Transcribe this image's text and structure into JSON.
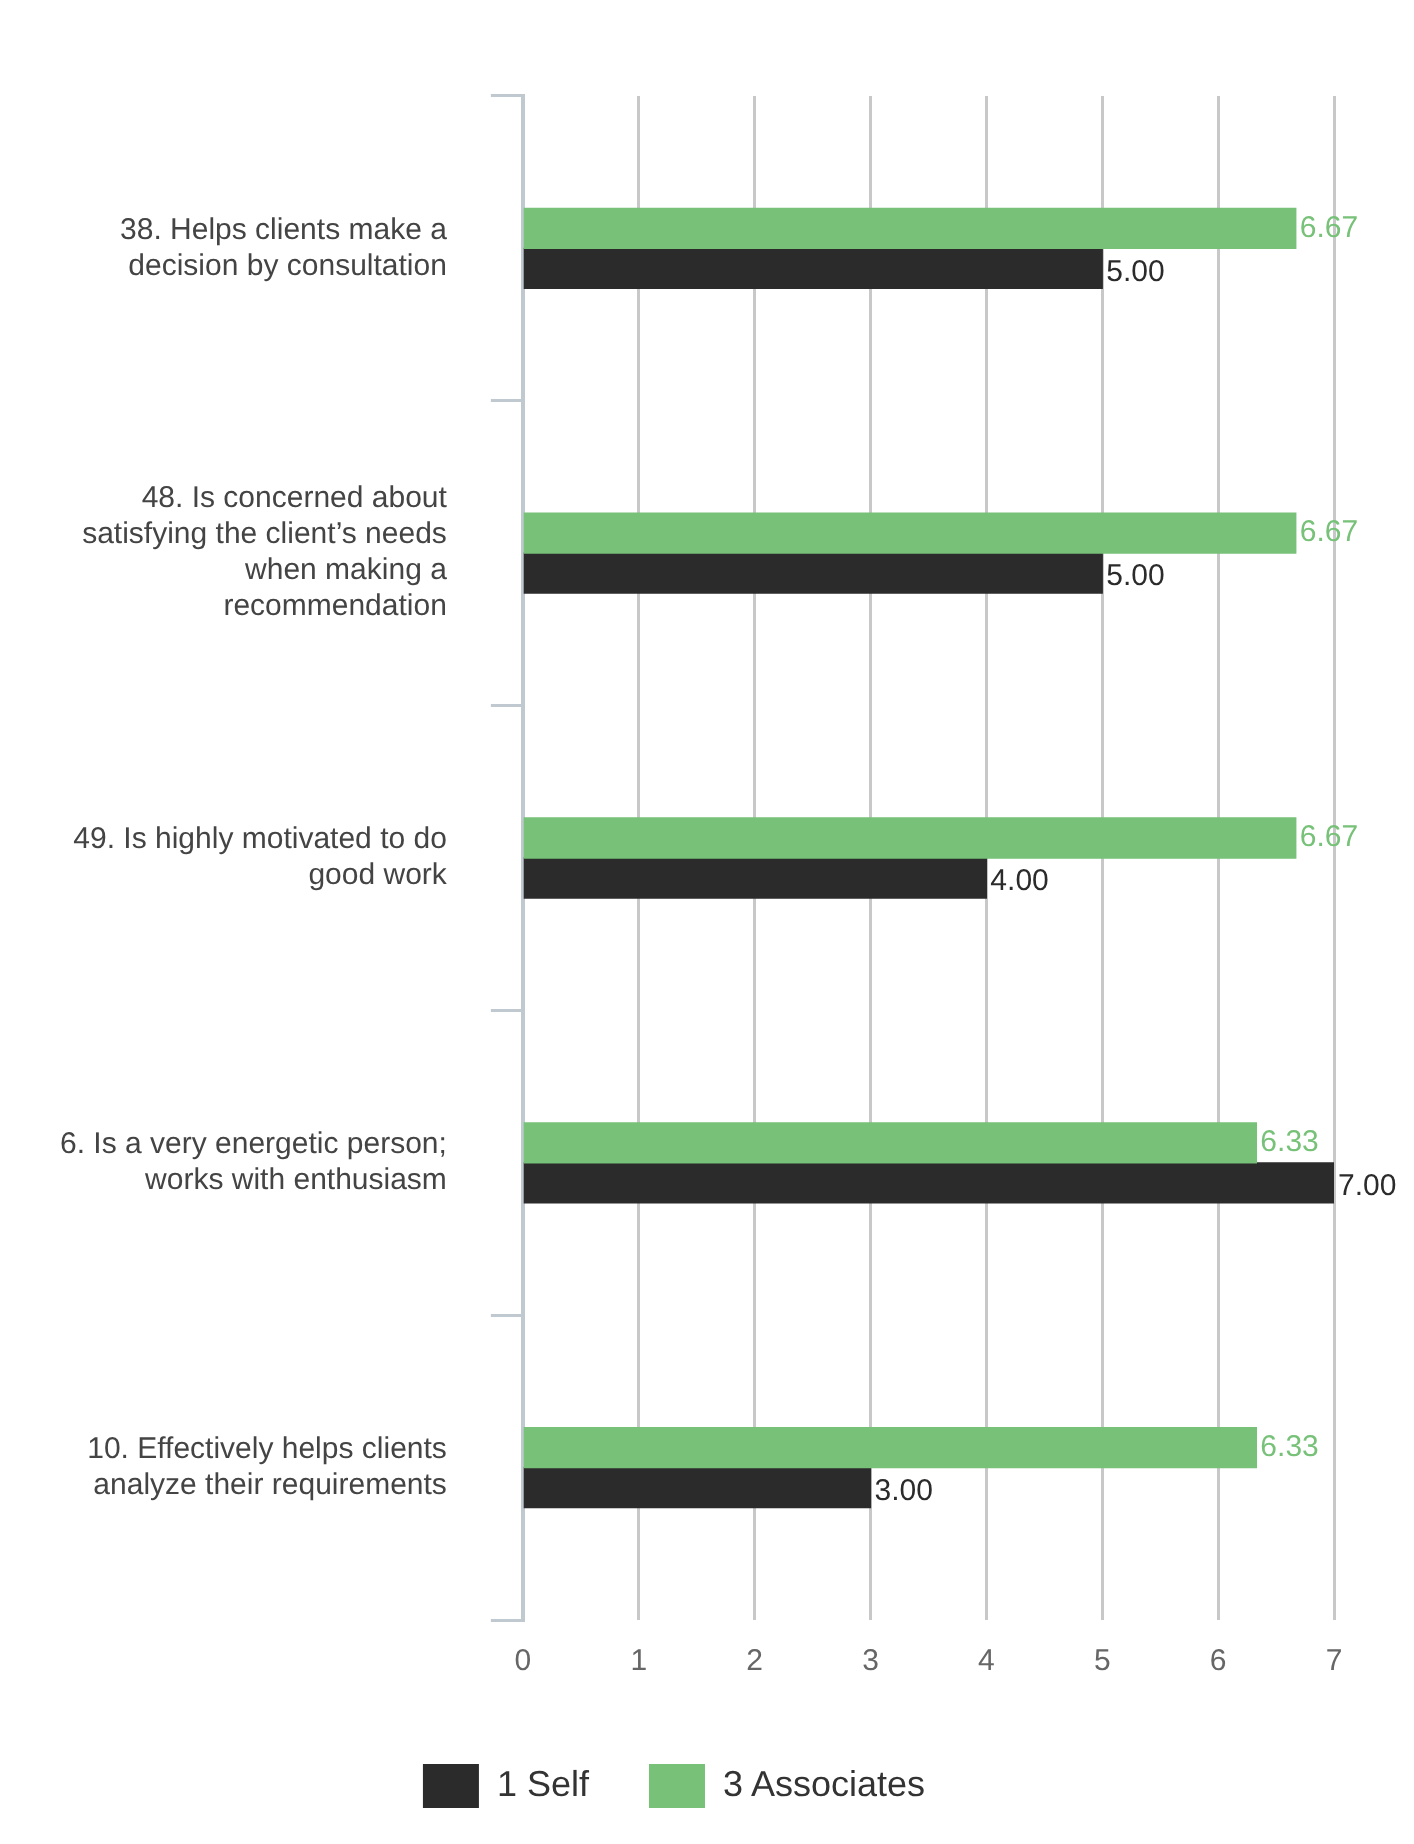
{
  "chart_data": {
    "type": "bar",
    "orientation": "horizontal",
    "categories": [
      "38. Helps clients make a decision by consultation",
      "48. Is concerned about satisfying the client’s needs when making a recommendation",
      "49. Is highly motivated to do good work",
      "6. Is a very energetic person; works with enthusiasm",
      "10. Effectively helps clients analyze their requirements"
    ],
    "series": [
      {
        "name": "3 Associates",
        "color": "#77c178",
        "values": [
          6.67,
          6.67,
          6.67,
          6.33,
          6.33
        ],
        "value_labels": [
          "6.67",
          "6.67",
          "6.67",
          "6.33",
          "6.33"
        ]
      },
      {
        "name": "1 Self",
        "color": "#2b2b2b",
        "values": [
          5,
          5,
          4,
          7,
          3
        ],
        "value_labels": [
          "5.00",
          "5.00",
          "4.00",
          "7.00",
          "3.00"
        ]
      }
    ],
    "xlim": [
      0,
      7
    ],
    "xticks": [
      0,
      1,
      2,
      3,
      4,
      5,
      6,
      7
    ],
    "grid": "x",
    "legend": "bottom"
  }
}
